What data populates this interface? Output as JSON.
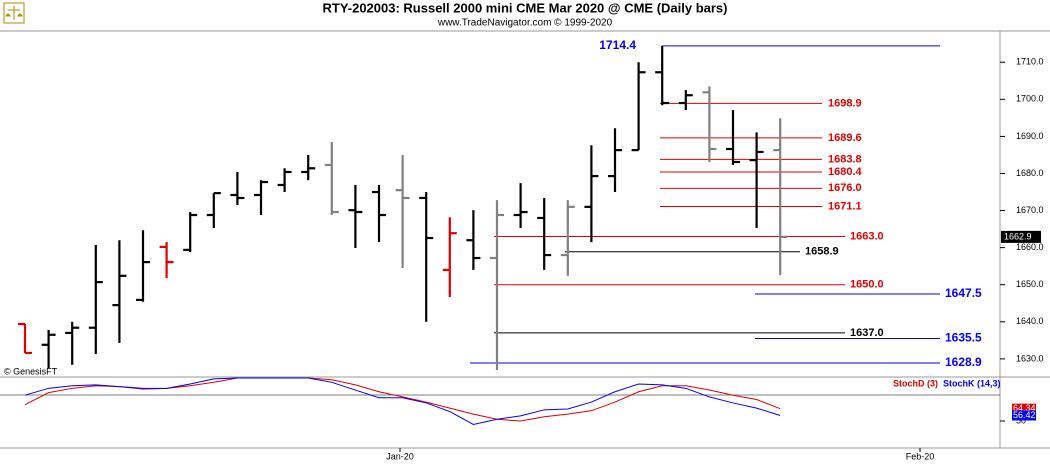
{
  "chart_data": {
    "type": "ohlc",
    "title": "RTY-202003:  Russell 2000 mini CME Mar 2020 @ CME  (Daily bars)",
    "subtitle": "www.TradeNavigator.com © 1999-2020",
    "source": "© GenesisFT",
    "x_labels": [
      "Jan-20",
      "Feb-20"
    ],
    "ylim": [
      1627,
      1716
    ],
    "yticks": [
      {
        "value": 1630,
        "label": "1630.0"
      },
      {
        "value": 1640,
        "label": "1640.0"
      },
      {
        "value": 1650,
        "label": "1650.0"
      },
      {
        "value": 1660,
        "label": "1660.0"
      },
      {
        "value": 1670,
        "label": "1670.0"
      },
      {
        "value": 1680,
        "label": "1680.0"
      },
      {
        "value": 1690,
        "label": "1690.0"
      },
      {
        "value": 1700,
        "label": "1700.0"
      },
      {
        "value": 1710,
        "label": "1710.0"
      }
    ],
    "open": [
      1639.4,
      1633.8,
      1637,
      1638.4,
      1644.5,
      1645.9,
      1660.2,
      1659.4,
      1668.8,
      1674.2,
      1674.2,
      1676.9,
      1680.4,
      1682.3,
      1670.1,
      1675,
      1675.5,
      1673.4,
      1654,
      1662,
      1657.2,
      1668.8,
      1668,
      1658,
      1671,
      1679.3,
      1686.3,
      1707.3,
      1699,
      1701.9,
      1686.6,
      1683.6,
      1686.3
    ],
    "high": [
      1639.4,
      1637.8,
      1640,
      1660.7,
      1662,
      1664.7,
      1661.5,
      1669.6,
      1674.7,
      1680.4,
      1678.2,
      1681.4,
      1685,
      1688.5,
      1676.9,
      1676.9,
      1685,
      1675,
      1668.2,
      1670.1,
      1672.8,
      1677.4,
      1673.4,
      1672.8,
      1687.6,
      1692.2,
      1710,
      1714.4,
      1702.5,
      1703.5,
      1697.1,
      1691.1,
      1694.9
    ],
    "low": [
      1631.6,
      1627.5,
      1628.4,
      1631.3,
      1634.3,
      1645.4,
      1651.8,
      1658.8,
      1665.3,
      1671.5,
      1668.8,
      1675,
      1678.2,
      1668.8,
      1659.9,
      1661.5,
      1654.5,
      1640,
      1646.7,
      1654,
      1627,
      1665.3,
      1654,
      1652.4,
      1661.5,
      1675,
      1686.3,
      1698.4,
      1697.1,
      1683.1,
      1682.3,
      1665.3,
      1652.6
    ],
    "close": [
      1631.6,
      1636.5,
      1638.4,
      1650.7,
      1652.4,
      1656.1,
      1656.1,
      1668.8,
      1674.7,
      1673.4,
      1677.7,
      1680.4,
      1681.4,
      1669.6,
      1669.6,
      1668.8,
      1673.4,
      1662.6,
      1663.9,
      1657.2,
      1668.8,
      1669.6,
      1658,
      1671,
      1679.3,
      1686.3,
      1707.3,
      1699,
      1701.1,
      1686.6,
      1683.1,
      1685.8,
      1662.9
    ],
    "colors": [
      "#e00000",
      "#000000",
      "#000000",
      "#000000",
      "#000000",
      "#000000",
      "#e00000",
      "#000000",
      "#000000",
      "#000000",
      "#000000",
      "#000000",
      "#000000",
      "#808080",
      "#000000",
      "#000000",
      "#808080",
      "#000000",
      "#e00000",
      "#000000",
      "#808080",
      "#000000",
      "#000000",
      "#808080",
      "#000000",
      "#000000",
      "#000000",
      "#000000",
      "#000000",
      "#808080",
      "#000000",
      "#000000",
      "#808080"
    ],
    "levels": {
      "values": [
        1714.4,
        1698.9,
        1689.6,
        1683.8,
        1680.4,
        1676,
        1671.1,
        1663,
        1658.9,
        1650,
        1647.5,
        1637,
        1635.5,
        1628.9
      ],
      "value_labels": [
        "1714.4",
        "1698.9",
        "1689.6",
        "1683.8",
        "1680.4",
        "1676.0",
        "1671.1",
        "1663.0",
        "1658.9",
        "1650.0",
        "1647.5",
        "1637.0",
        "1635.5",
        "1628.9"
      ],
      "colors": [
        "#0000ff",
        "#e00000",
        "#e00000",
        "#e00000",
        "#e00000",
        "#e00000",
        "#e00000",
        "#e00000",
        "#000000",
        "#e00000",
        "#0000ff",
        "#000000",
        "#0000ff",
        "#0000ff"
      ]
    },
    "indicator": {
      "ylim": [
        0,
        100
      ],
      "yticks": [
        50
      ],
      "series": [
        {
          "name": "StochD (3)",
          "color": "#e00000",
          "values": [
            69,
            83,
            88,
            91,
            90,
            87,
            88,
            91,
            95,
            100,
            100,
            100,
            100,
            98,
            92,
            84,
            78,
            72,
            65,
            58,
            52,
            50,
            55,
            58,
            62,
            72,
            84,
            91,
            91,
            86,
            80,
            75,
            64.34
          ]
        },
        {
          "name": "StochK (14,3)",
          "color": "#0000ff",
          "values": [
            80,
            88,
            91,
            92,
            90,
            88,
            88,
            93,
            99,
            100,
            100,
            100,
            100,
            95,
            86,
            77,
            77,
            71,
            61,
            46,
            52,
            56,
            63,
            64,
            72,
            84,
            93,
            92,
            88,
            78,
            71,
            65,
            56.42
          ]
        }
      ]
    }
  }
}
